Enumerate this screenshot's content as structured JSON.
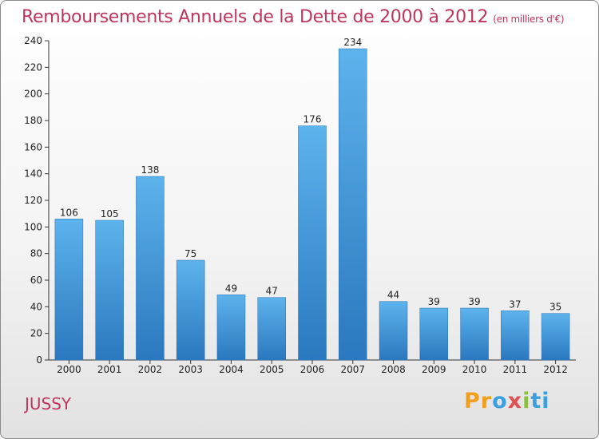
{
  "header": {
    "title": "Remboursements Annuels de la Dette de 2000 à 2012",
    "unit": "(en milliers d'€)"
  },
  "footer": {
    "commune": "JUSSY",
    "logo": "Proxiti"
  },
  "chart_data": {
    "type": "bar",
    "title": "Remboursements Annuels de la Dette de 2000 à 2012",
    "subtitle": "(en milliers d'€)",
    "xlabel": "",
    "ylabel": "",
    "categories": [
      "2000",
      "2001",
      "2002",
      "2003",
      "2004",
      "2005",
      "2006",
      "2007",
      "2008",
      "2009",
      "2010",
      "2011",
      "2012"
    ],
    "values": [
      106,
      105,
      138,
      75,
      49,
      47,
      176,
      234,
      44,
      39,
      39,
      37,
      35
    ],
    "ylim": [
      0,
      240
    ],
    "yticks": [
      0,
      20,
      40,
      60,
      80,
      100,
      120,
      140,
      160,
      180,
      200,
      220,
      240
    ],
    "grid": false,
    "legend": "none",
    "bar_color": "#3d95d8",
    "title_color": "#c0355d"
  }
}
